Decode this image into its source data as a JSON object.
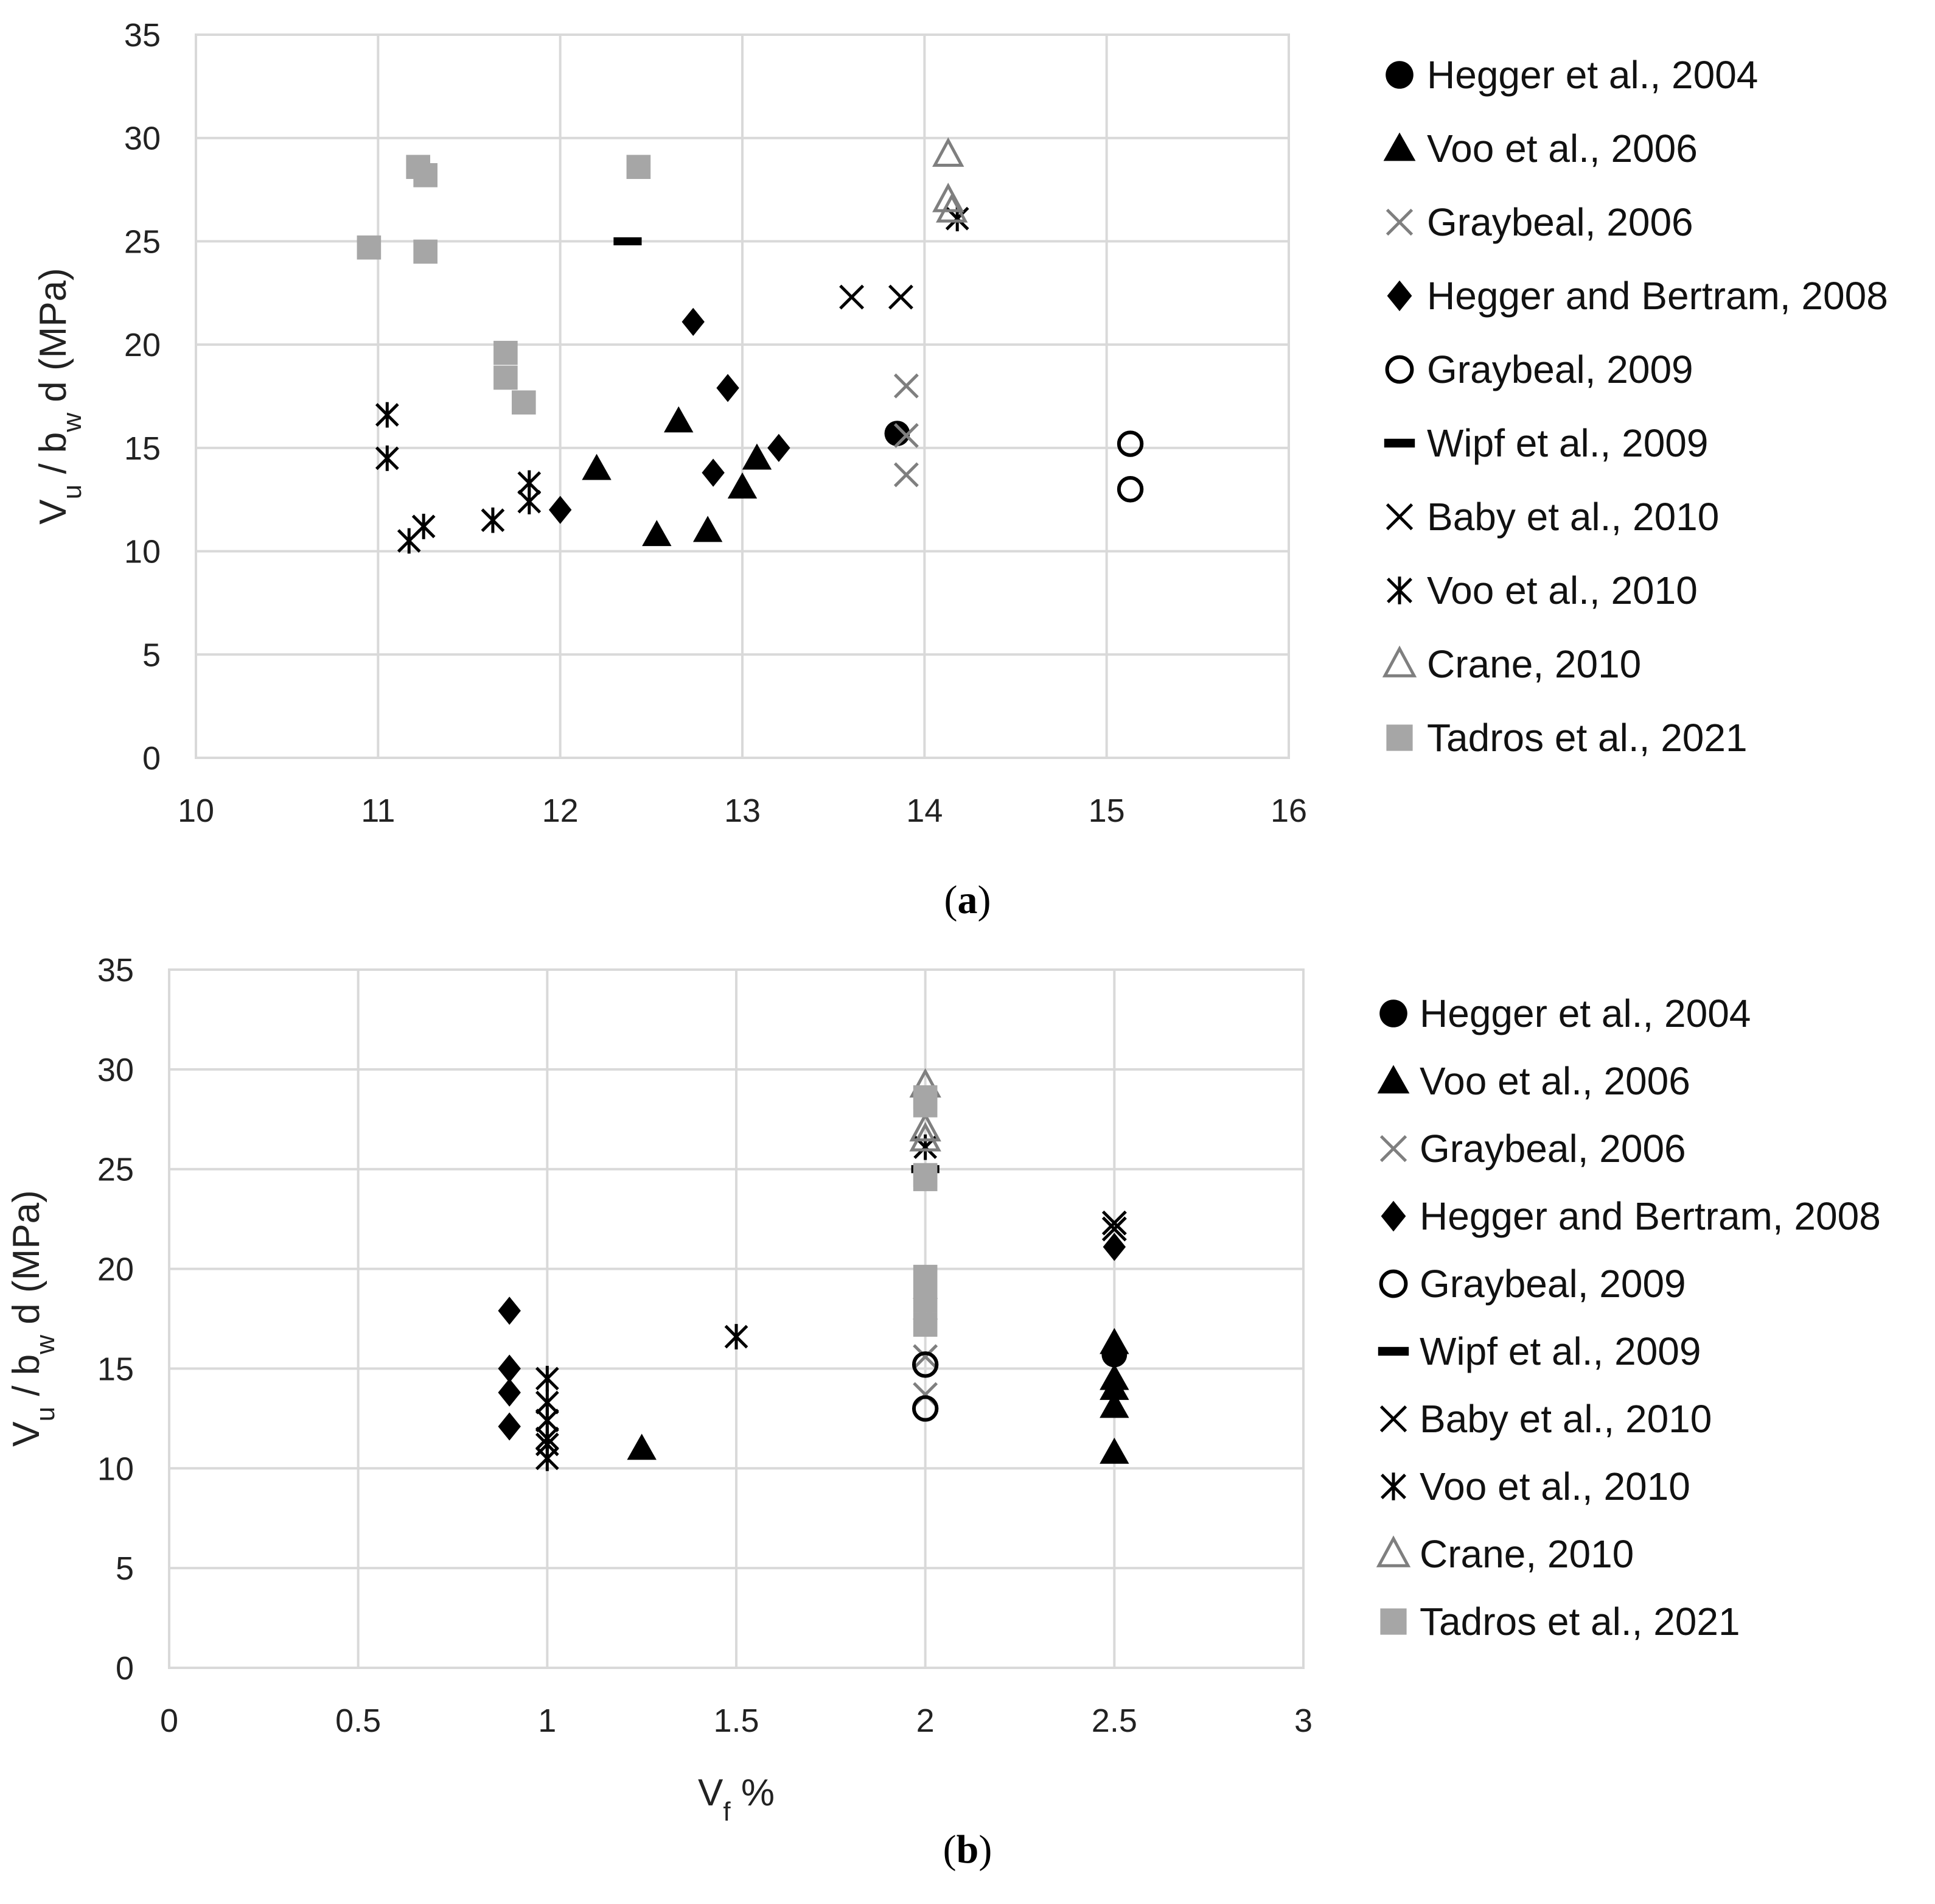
{
  "series_styles": [
    {
      "name": "Hegger et al., 2004",
      "marker": "filled-circle",
      "color": "#000000"
    },
    {
      "name": "Voo et al., 2006",
      "marker": "filled-triangle",
      "color": "#000000"
    },
    {
      "name": "Graybeal, 2006",
      "marker": "x-cross",
      "color": "#7f7f7f"
    },
    {
      "name": "Hegger and Bertram, 2008",
      "marker": "filled-diamond",
      "color": "#000000"
    },
    {
      "name": "Graybeal, 2009",
      "marker": "open-circle",
      "color": "#000000"
    },
    {
      "name": "Wipf et al., 2009",
      "marker": "dash",
      "color": "#000000"
    },
    {
      "name": "Baby et al., 2010",
      "marker": "x-cross",
      "color": "#000000"
    },
    {
      "name": "Voo et al., 2010",
      "marker": "star-cross",
      "color": "#000000"
    },
    {
      "name": "Crane, 2010",
      "marker": "open-triangle",
      "color": "#7f7f7f"
    },
    {
      "name": "Tadros et al., 2021",
      "marker": "filled-square",
      "color": "#a6a6a6"
    }
  ],
  "chart_data": [
    {
      "type": "scatter",
      "panel_label": "(a)",
      "title": "",
      "xlabel": "",
      "ylabel": "V_u / b_w d (MPa)",
      "xlim": [
        10,
        16
      ],
      "ylim": [
        0,
        35
      ],
      "x_ticks": [
        "10",
        "11",
        "12",
        "13",
        "14",
        "15",
        "16"
      ],
      "y_ticks": [
        "0",
        "5",
        "10",
        "15",
        "20",
        "25",
        "30",
        "35"
      ],
      "grid": true,
      "legend_position": "right",
      "series": [
        {
          "name": "Hegger et al., 2004",
          "points": [
            [
              13.85,
              15.7
            ]
          ]
        },
        {
          "name": "Voo et al., 2006",
          "points": [
            [
              12.2,
              14.0
            ],
            [
              12.53,
              10.8
            ],
            [
              12.65,
              16.3
            ],
            [
              12.81,
              11.0
            ],
            [
              13.0,
              13.1
            ],
            [
              13.08,
              14.5
            ]
          ]
        },
        {
          "name": "Graybeal, 2006",
          "points": [
            [
              13.9,
              18.0
            ],
            [
              13.9,
              15.6
            ],
            [
              13.9,
              13.7
            ]
          ]
        },
        {
          "name": "Hegger and Bertram, 2008",
          "points": [
            [
              12.0,
              12.0
            ],
            [
              12.73,
              21.1
            ],
            [
              12.84,
              13.8
            ],
            [
              12.92,
              17.9
            ],
            [
              13.2,
              15.0
            ]
          ]
        },
        {
          "name": "Graybeal, 2009",
          "points": [
            [
              15.13,
              15.2
            ],
            [
              15.13,
              13.0
            ]
          ]
        },
        {
          "name": "Wipf et al., 2009",
          "points": [
            [
              12.37,
              25.0
            ]
          ]
        },
        {
          "name": "Baby et al., 2010",
          "points": [
            [
              13.6,
              22.3
            ],
            [
              13.87,
              22.3
            ]
          ]
        },
        {
          "name": "Voo et al., 2010",
          "points": [
            [
              11.05,
              16.6
            ],
            [
              11.05,
              14.5
            ],
            [
              11.17,
              10.5
            ],
            [
              11.25,
              11.2
            ],
            [
              11.63,
              11.5
            ],
            [
              11.83,
              13.3
            ],
            [
              11.83,
              12.4
            ],
            [
              14.18,
              26.1
            ]
          ]
        },
        {
          "name": "Crane, 2010",
          "points": [
            [
              14.13,
              29.2
            ],
            [
              14.13,
              27.0
            ],
            [
              14.15,
              26.5
            ]
          ]
        },
        {
          "name": "Tadros et al., 2021",
          "points": [
            [
              10.95,
              24.7
            ],
            [
              11.22,
              28.6
            ],
            [
              11.26,
              28.2
            ],
            [
              11.26,
              24.5
            ],
            [
              11.7,
              19.6
            ],
            [
              11.7,
              18.4
            ],
            [
              11.8,
              17.2
            ],
            [
              12.43,
              28.6
            ]
          ]
        }
      ]
    },
    {
      "type": "scatter",
      "panel_label": "(b)",
      "title": "",
      "xlabel": "V_f %",
      "ylabel": "V_u / b_w d (MPa)",
      "xlim": [
        0,
        3
      ],
      "ylim": [
        0,
        35
      ],
      "x_ticks": [
        "0",
        "0.5",
        "1",
        "1.5",
        "2",
        "2.5",
        "3"
      ],
      "y_ticks": [
        "0",
        "5",
        "10",
        "15",
        "20",
        "25",
        "30",
        "35"
      ],
      "grid": true,
      "legend_position": "right",
      "series": [
        {
          "name": "Hegger et al., 2004",
          "points": [
            [
              2.5,
              15.7
            ]
          ]
        },
        {
          "name": "Voo et al., 2006",
          "points": [
            [
              1.25,
              11.0
            ],
            [
              2.5,
              16.3
            ],
            [
              2.5,
              14.5
            ],
            [
              2.5,
              14.0
            ],
            [
              2.5,
              13.1
            ],
            [
              2.5,
              10.8
            ]
          ]
        },
        {
          "name": "Graybeal, 2006",
          "points": [
            [
              2.0,
              18.0
            ],
            [
              2.0,
              15.6
            ],
            [
              2.0,
              13.7
            ]
          ]
        },
        {
          "name": "Hegger and Bertram, 2008",
          "points": [
            [
              0.9,
              17.9
            ],
            [
              0.9,
              15.0
            ],
            [
              0.9,
              13.8
            ],
            [
              0.9,
              12.1
            ],
            [
              2.5,
              21.1
            ]
          ]
        },
        {
          "name": "Graybeal, 2009",
          "points": [
            [
              2.0,
              15.2
            ],
            [
              2.0,
              13.0
            ]
          ]
        },
        {
          "name": "Wipf et al., 2009",
          "points": [
            [
              2.0,
              25.0
            ]
          ]
        },
        {
          "name": "Baby et al., 2010",
          "points": [
            [
              2.5,
              22.3
            ],
            [
              2.5,
              22.0
            ]
          ]
        },
        {
          "name": "Voo et al., 2010",
          "points": [
            [
              1.0,
              14.5
            ],
            [
              1.0,
              13.3
            ],
            [
              1.0,
              12.4
            ],
            [
              1.0,
              11.5
            ],
            [
              1.0,
              11.2
            ],
            [
              1.0,
              10.5
            ],
            [
              1.5,
              16.6
            ],
            [
              2.0,
              26.1
            ]
          ]
        },
        {
          "name": "Crane, 2010",
          "points": [
            [
              2.0,
              29.2
            ],
            [
              2.0,
              27.0
            ],
            [
              2.0,
              26.5
            ]
          ]
        },
        {
          "name": "Tadros et al., 2021",
          "points": [
            [
              2.0,
              28.6
            ],
            [
              2.0,
              28.2
            ],
            [
              2.0,
              24.7
            ],
            [
              2.0,
              24.5
            ],
            [
              2.0,
              19.6
            ],
            [
              2.0,
              18.4
            ],
            [
              2.0,
              17.2
            ]
          ]
        }
      ]
    }
  ]
}
